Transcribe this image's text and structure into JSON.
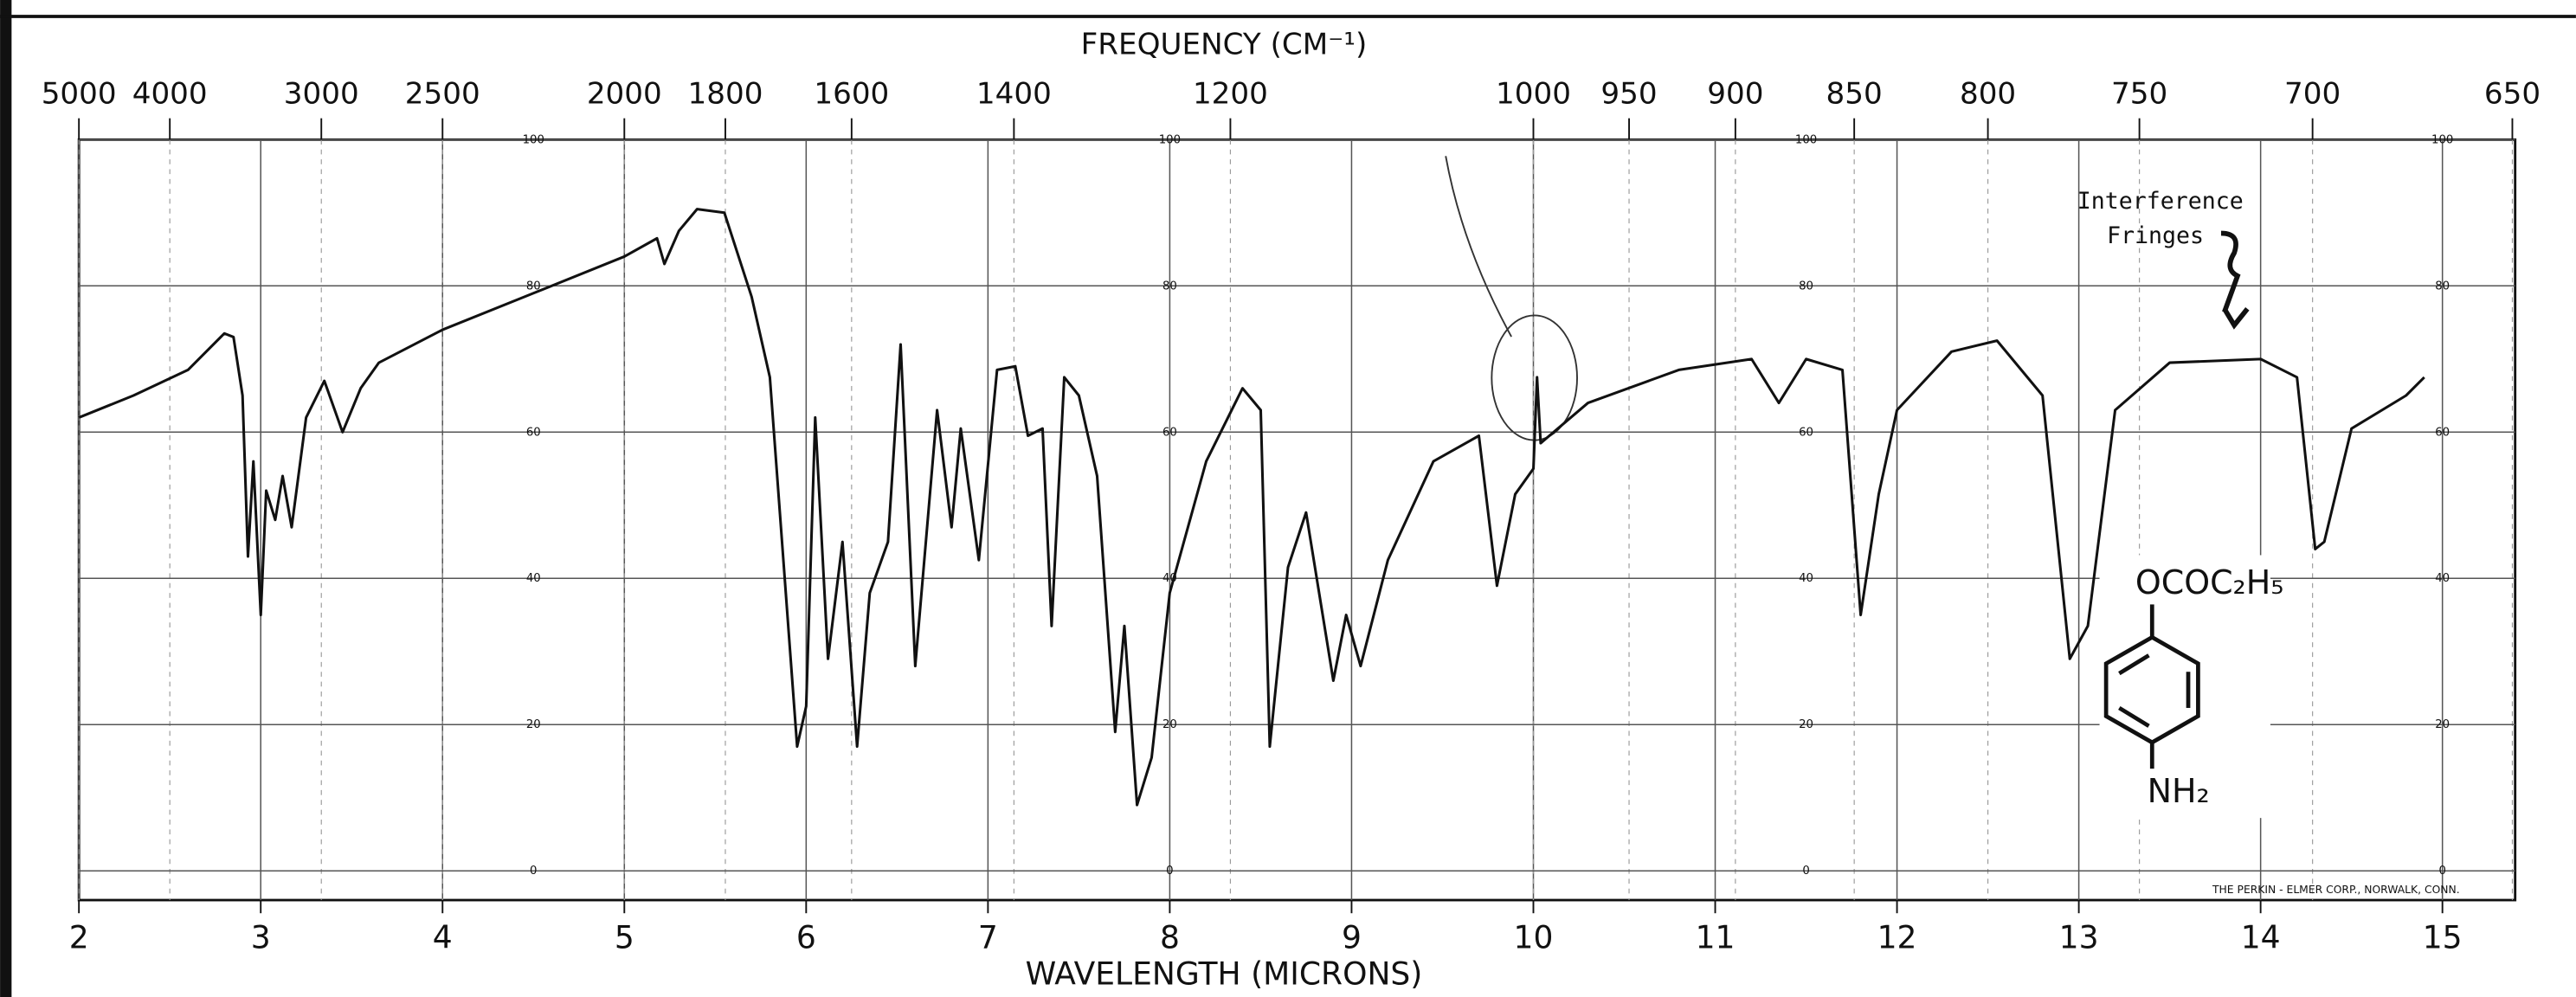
{
  "chart_data": {
    "type": "line",
    "x_label": "WAVELENGTH (MICRONS)",
    "x2_label": "FREQUENCY (CM⁻¹)",
    "x": [
      2.0,
      2.3,
      2.6,
      2.8,
      2.85,
      2.9,
      2.93,
      2.96,
      3.0,
      3.03,
      3.08,
      3.12,
      3.17,
      3.25,
      3.35,
      3.45,
      3.55,
      3.65,
      4.0,
      4.5,
      5.0,
      5.18,
      5.22,
      5.3,
      5.4,
      5.55,
      5.7,
      5.8,
      5.95,
      6.0,
      6.05,
      6.12,
      6.2,
      6.28,
      6.35,
      6.45,
      6.52,
      6.6,
      6.72,
      6.8,
      6.85,
      6.95,
      7.05,
      7.15,
      7.22,
      7.3,
      7.35,
      7.42,
      7.5,
      7.6,
      7.7,
      7.75,
      7.82,
      7.9,
      8.0,
      8.2,
      8.4,
      8.5,
      8.55,
      8.65,
      8.75,
      8.9,
      8.97,
      9.05,
      9.2,
      9.45,
      9.7,
      9.8,
      9.9,
      10.0,
      10.02,
      10.04,
      10.3,
      10.8,
      11.2,
      11.35,
      11.5,
      11.7,
      11.8,
      11.9,
      12.0,
      12.3,
      12.55,
      12.8,
      12.95,
      13.05,
      13.2,
      13.5,
      14.0,
      14.2,
      14.3,
      14.35,
      14.5,
      14.8,
      14.9
    ],
    "series": [
      {
        "color": "#111111",
        "values": [
          62,
          65,
          68.5,
          73.5,
          73,
          65,
          43,
          56,
          35,
          52,
          48,
          54,
          47,
          62,
          67,
          60,
          66,
          69.5,
          74,
          79,
          84,
          86.5,
          83,
          87.5,
          90.5,
          90,
          78.5,
          67.5,
          17,
          22.5,
          62,
          29,
          45,
          17,
          38,
          45,
          72,
          28,
          63,
          47,
          60.5,
          42.5,
          68.5,
          69,
          59.5,
          60.5,
          33.5,
          67.5,
          65,
          54,
          19,
          33.5,
          9,
          15.5,
          38,
          56,
          66,
          63,
          17,
          41.5,
          49,
          26,
          35,
          28,
          42.5,
          56,
          59.5,
          39,
          51.5,
          55,
          67.5,
          58.5,
          64,
          68.5,
          70,
          64,
          70,
          68.5,
          35,
          51.5,
          63,
          71,
          72.5,
          65,
          29,
          33.5,
          63,
          69.5,
          70,
          67.5,
          44,
          45,
          60.5,
          65,
          67.5
        ]
      }
    ],
    "xlim": [
      2,
      15.4
    ],
    "ylim": [
      -4,
      100
    ],
    "xticks": [
      2,
      3,
      4,
      5,
      6,
      7,
      8,
      9,
      10,
      11,
      12,
      13,
      14,
      15
    ],
    "x2ticks": [
      5000,
      4000,
      3000,
      2500,
      2000,
      1800,
      1600,
      1400,
      1200,
      1000,
      950,
      900,
      850,
      800,
      750,
      700,
      650
    ],
    "yticks": [
      0,
      20,
      40,
      60,
      80,
      100
    ],
    "grid": true,
    "annotations": [
      "Interference",
      "Fringes"
    ],
    "structure": {
      "top": "OCOC₂H₅",
      "bottom": "NH₂"
    },
    "credit": "THE PERKIN - ELMER CORP., NORWALK, CONN."
  }
}
